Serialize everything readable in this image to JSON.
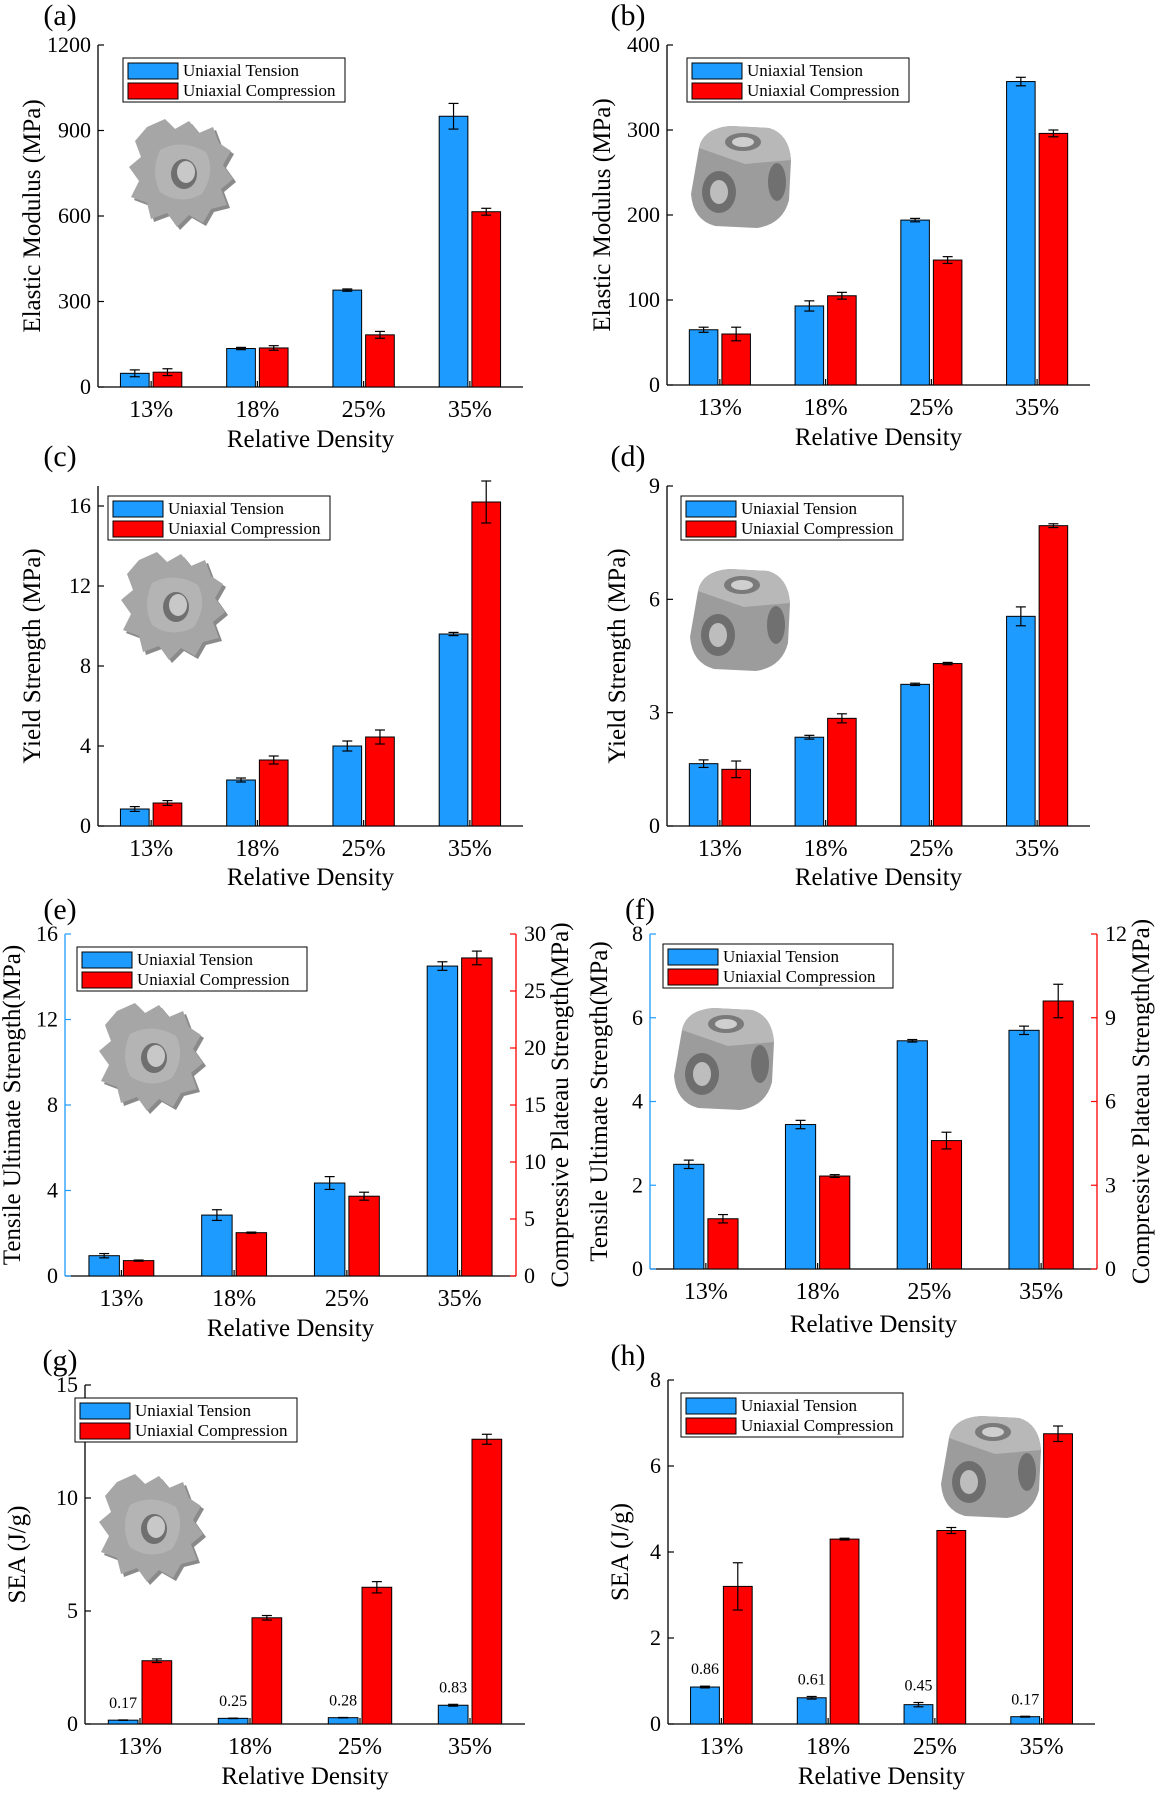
{
  "colors": {
    "tension": "#1E9BFF",
    "compression": "#FF0000",
    "axis": "#000000"
  },
  "legend": {
    "tension": "Uniaxial Tension",
    "compression": "Uniaxial Compression"
  },
  "chart_data": [
    {
      "id": "a",
      "panel_label": "(a)",
      "type": "bar",
      "xlabel": "Relative Density",
      "ylabel": "Elastic Modulus (MPa)",
      "categories": [
        "13%",
        "18%",
        "25%",
        "35%"
      ],
      "ylim": [
        0,
        1200
      ],
      "yticks": [
        0,
        300,
        600,
        900,
        1200
      ],
      "icon": "gyroid-lattice-icon",
      "series": [
        {
          "name": "Uniaxial Tension",
          "values": [
            48,
            135,
            340,
            950
          ],
          "errors": [
            12,
            4,
            4,
            45
          ]
        },
        {
          "name": "Uniaxial Compression",
          "values": [
            52,
            137,
            183,
            615
          ],
          "errors": [
            12,
            8,
            12,
            12
          ]
        }
      ]
    },
    {
      "id": "b",
      "panel_label": "(b)",
      "type": "bar",
      "xlabel": "Relative Density",
      "ylabel": "Elastic Modulus (MPa)",
      "categories": [
        "13%",
        "18%",
        "25%",
        "35%"
      ],
      "ylim": [
        0,
        400
      ],
      "yticks": [
        0,
        100,
        200,
        300,
        400
      ],
      "icon": "cubic-lattice-icon",
      "series": [
        {
          "name": "Uniaxial Tension",
          "values": [
            65,
            93,
            194,
            357
          ],
          "errors": [
            3,
            6,
            2,
            5
          ]
        },
        {
          "name": "Uniaxial Compression",
          "values": [
            60,
            105,
            147,
            296
          ],
          "errors": [
            8,
            4,
            4,
            4
          ]
        }
      ]
    },
    {
      "id": "c",
      "panel_label": "(c)",
      "type": "bar",
      "xlabel": "Relative Density",
      "ylabel": "Yield Strength (MPa)",
      "categories": [
        "13%",
        "18%",
        "25%",
        "35%"
      ],
      "ylim": [
        0,
        17
      ],
      "yticks": [
        0,
        4,
        8,
        12,
        16
      ],
      "icon": "gyroid-lattice-icon",
      "series": [
        {
          "name": "Uniaxial Tension",
          "values": [
            0.85,
            2.3,
            4.0,
            9.6
          ],
          "errors": [
            0.12,
            0.1,
            0.25,
            0.08
          ]
        },
        {
          "name": "Uniaxial Compression",
          "values": [
            1.15,
            3.3,
            4.45,
            16.2
          ],
          "errors": [
            0.12,
            0.2,
            0.35,
            1.05
          ]
        }
      ]
    },
    {
      "id": "d",
      "panel_label": "(d)",
      "type": "bar",
      "xlabel": "Relative Density",
      "ylabel": "Yield Strength (MPa)",
      "categories": [
        "13%",
        "18%",
        "25%",
        "35%"
      ],
      "ylim": [
        0,
        9
      ],
      "yticks": [
        0,
        3,
        6,
        9
      ],
      "icon": "cubic-lattice-icon",
      "series": [
        {
          "name": "Uniaxial Tension",
          "values": [
            1.65,
            2.35,
            3.75,
            5.55
          ],
          "errors": [
            0.1,
            0.05,
            0.03,
            0.25
          ]
        },
        {
          "name": "Uniaxial Compression",
          "values": [
            1.5,
            2.85,
            4.3,
            7.95
          ],
          "errors": [
            0.22,
            0.12,
            0.03,
            0.05
          ]
        }
      ]
    },
    {
      "id": "e",
      "panel_label": "(e)",
      "type": "bar",
      "xlabel": "Relative Density",
      "ylabel": "Tensile Ultimate Strength(MPa)",
      "ylabel_right": "Compressive Plateau Strength(MPa)",
      "categories": [
        "13%",
        "18%",
        "25%",
        "35%"
      ],
      "ylim": [
        0,
        16
      ],
      "yticks": [
        0,
        4,
        8,
        12,
        16
      ],
      "ylim_right": [
        0,
        30
      ],
      "yticks_right": [
        0,
        5,
        10,
        15,
        20,
        25,
        30
      ],
      "icon": "gyroid-lattice-icon",
      "series": [
        {
          "name": "Uniaxial Tension",
          "axis": "left",
          "values": [
            0.95,
            2.85,
            4.35,
            14.5
          ],
          "errors": [
            0.1,
            0.25,
            0.3,
            0.2
          ]
        },
        {
          "name": "Uniaxial Compression",
          "axis": "right",
          "values": [
            1.35,
            3.8,
            7.0,
            27.9
          ],
          "errors": [
            0.05,
            0.05,
            0.35,
            0.6
          ]
        }
      ]
    },
    {
      "id": "f",
      "panel_label": "(f)",
      "type": "bar",
      "xlabel": "Relative Density",
      "ylabel": "Tensile Ultimate Strength(MPa)",
      "ylabel_right": "Compressive Plateau Strength(MPa)",
      "categories": [
        "13%",
        "18%",
        "25%",
        "35%"
      ],
      "ylim": [
        0,
        8
      ],
      "yticks": [
        0,
        2,
        4,
        6,
        8
      ],
      "ylim_right": [
        0,
        12
      ],
      "yticks_right": [
        0,
        3,
        6,
        9,
        12
      ],
      "icon": "cubic-lattice-icon",
      "series": [
        {
          "name": "Uniaxial Tension",
          "axis": "left",
          "values": [
            2.5,
            3.45,
            5.45,
            5.7
          ],
          "errors": [
            0.1,
            0.1,
            0.03,
            0.1
          ]
        },
        {
          "name": "Uniaxial Compression",
          "axis": "right",
          "values": [
            1.8,
            3.33,
            4.6,
            9.6
          ],
          "errors": [
            0.15,
            0.05,
            0.3,
            0.6
          ]
        }
      ]
    },
    {
      "id": "g",
      "panel_label": "(g)",
      "type": "bar",
      "xlabel": "Relative Density",
      "ylabel": "SEA (J/g)",
      "categories": [
        "13%",
        "18%",
        "25%",
        "35%"
      ],
      "ylim": [
        0,
        15
      ],
      "yticks": [
        0,
        5,
        10,
        15
      ],
      "icon": "gyroid-lattice-icon",
      "series": [
        {
          "name": "Uniaxial Tension",
          "values": [
            0.17,
            0.25,
            0.28,
            0.83
          ],
          "errors": [
            0.01,
            0.01,
            0.01,
            0.04
          ],
          "labels": [
            "0.17",
            "0.25",
            "0.28",
            "0.83"
          ]
        },
        {
          "name": "Uniaxial Compression",
          "values": [
            2.8,
            4.7,
            6.05,
            12.6
          ],
          "errors": [
            0.08,
            0.1,
            0.25,
            0.22
          ]
        }
      ]
    },
    {
      "id": "h",
      "panel_label": "(h)",
      "type": "bar",
      "xlabel": "Relative Density",
      "ylabel": "SEA (J/g)",
      "categories": [
        "13%",
        "18%",
        "25%",
        "35%"
      ],
      "ylim": [
        0,
        8
      ],
      "yticks": [
        0,
        2,
        4,
        6,
        8
      ],
      "icon": "cubic-lattice-icon",
      "series": [
        {
          "name": "Uniaxial Tension",
          "values": [
            0.86,
            0.61,
            0.45,
            0.17
          ],
          "errors": [
            0.02,
            0.03,
            0.05,
            0.01
          ],
          "labels": [
            "0.86",
            "0.61",
            "0.45",
            "0.17"
          ]
        },
        {
          "name": "Uniaxial Compression",
          "values": [
            3.2,
            4.3,
            4.5,
            6.75
          ],
          "errors": [
            0.55,
            0.02,
            0.07,
            0.18
          ]
        }
      ]
    }
  ]
}
